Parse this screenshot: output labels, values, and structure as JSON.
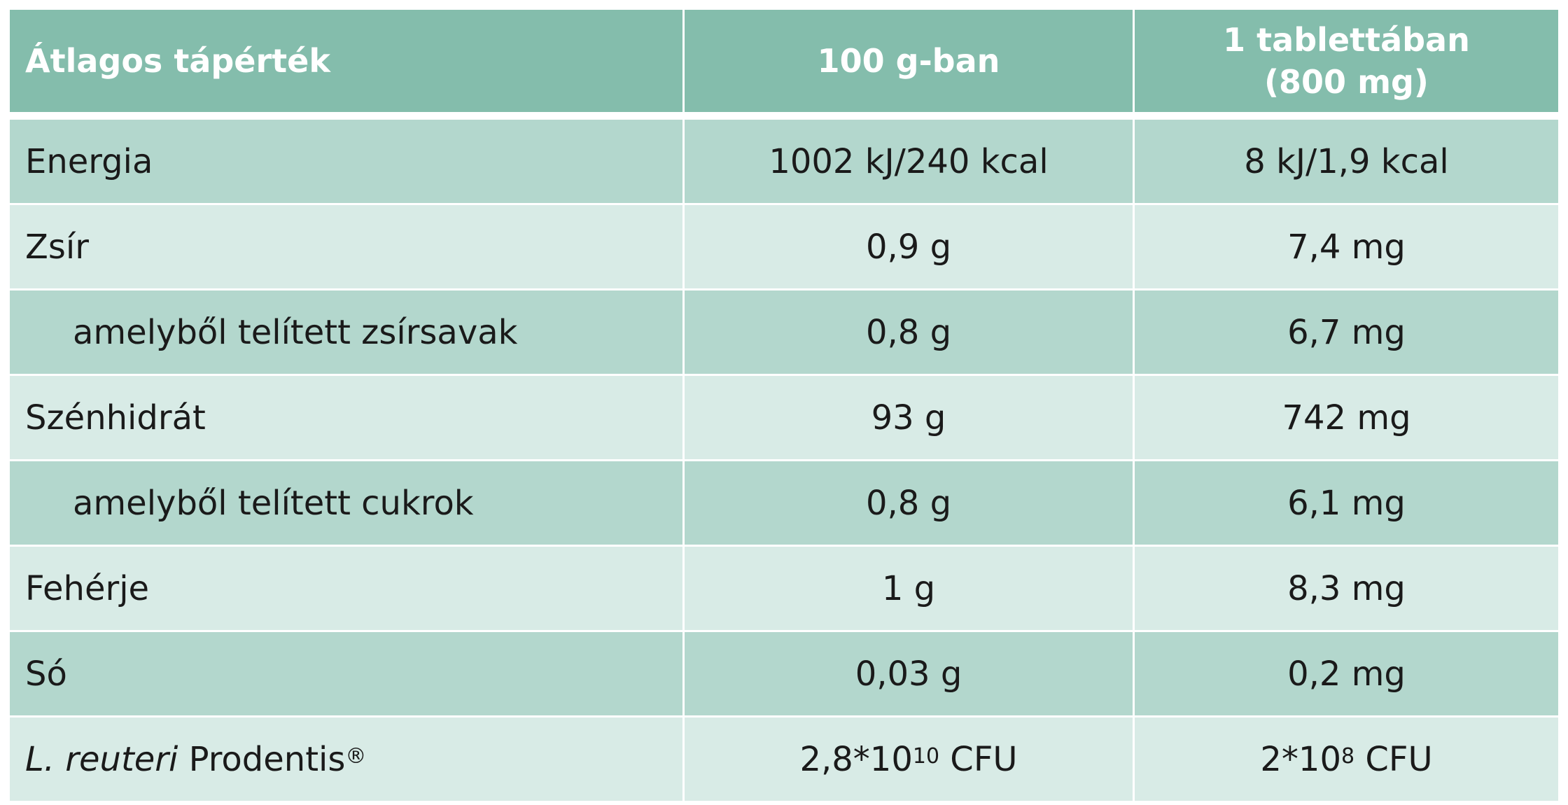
{
  "header": {
    "col1": "Átlagos tápérték",
    "col2": "100 g-ban",
    "col3_line1": "1 tablettában",
    "col3_line2": "(800 mg)"
  },
  "rows": [
    {
      "label": "Energia",
      "per100": "1002 kJ/240 kcal",
      "perTablet": "8 kJ/1,9 kcal"
    },
    {
      "label": "Zsír",
      "per100": "0,9 g",
      "perTablet": "7,4 mg"
    },
    {
      "label": "amelyből telített zsírsavak",
      "per100": "0,8 g",
      "perTablet": "6,7 mg"
    },
    {
      "label": "Szénhidrát",
      "per100": "93 g",
      "perTablet": "742 mg"
    },
    {
      "label": "amelyből telített cukrok",
      "per100": "0,8 g",
      "perTablet": "6,1 mg"
    },
    {
      "label": "Fehérje",
      "per100": "1 g",
      "perTablet": "8,3 mg"
    },
    {
      "label": "Só",
      "per100": "0,03 g",
      "perTablet": "0,2 mg"
    }
  ],
  "probiotic": {
    "label_italic": "L. reuteri",
    "label_rest": " Prodentis",
    "label_reg": "®",
    "per100_base": "2,8*10",
    "per100_exp": "10",
    "per100_unit": " CFU",
    "perTablet_base": "2*10",
    "perTablet_exp": "8",
    "perTablet_unit": " CFU"
  },
  "colors": {
    "header": "#84bdac",
    "row_dark": "#b3d7cd",
    "row_light": "#d8ebe6"
  }
}
